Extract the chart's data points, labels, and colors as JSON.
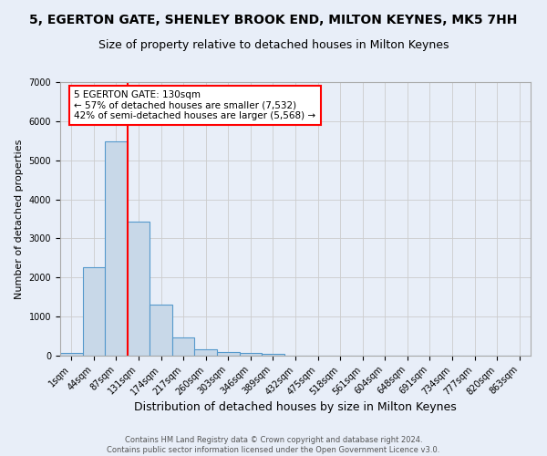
{
  "title": "5, EGERTON GATE, SHENLEY BROOK END, MILTON KEYNES, MK5 7HH",
  "subtitle": "Size of property relative to detached houses in Milton Keynes",
  "xlabel": "Distribution of detached houses by size in Milton Keynes",
  "ylabel": "Number of detached properties",
  "footer_line1": "Contains HM Land Registry data © Crown copyright and database right 2024.",
  "footer_line2": "Contains public sector information licensed under the Open Government Licence v3.0.",
  "bar_labels": [
    "1sqm",
    "44sqm",
    "87sqm",
    "131sqm",
    "174sqm",
    "217sqm",
    "260sqm",
    "303sqm",
    "346sqm",
    "389sqm",
    "432sqm",
    "475sqm",
    "518sqm",
    "561sqm",
    "604sqm",
    "648sqm",
    "691sqm",
    "734sqm",
    "777sqm",
    "820sqm",
    "863sqm"
  ],
  "bar_values": [
    80,
    2270,
    5480,
    3440,
    1310,
    470,
    160,
    90,
    60,
    40,
    0,
    0,
    0,
    0,
    0,
    0,
    0,
    0,
    0,
    0,
    0
  ],
  "bar_color": "#c8d8e8",
  "bar_edge_color": "#5599cc",
  "annotation_text": "5 EGERTON GATE: 130sqm\n← 57% of detached houses are smaller (7,532)\n42% of semi-detached houses are larger (5,568) →",
  "annotation_box_color": "white",
  "annotation_box_edge_color": "red",
  "vline_color": "red",
  "vline_x": 2.5,
  "ylim": [
    0,
    7000
  ],
  "grid_color": "#cccccc",
  "background_color": "#e8eef8",
  "title_fontsize": 10,
  "subtitle_fontsize": 9,
  "xlabel_fontsize": 9,
  "ylabel_fontsize": 8,
  "tick_fontsize": 7,
  "footer_fontsize": 6,
  "annot_fontsize": 7.5
}
